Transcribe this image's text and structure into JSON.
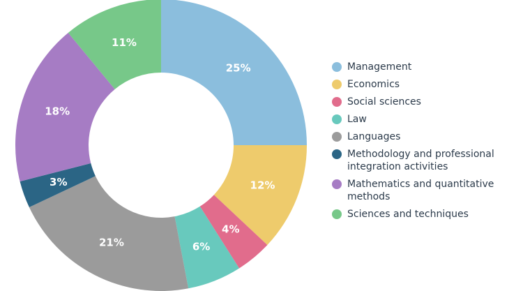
{
  "chart_data": {
    "type": "pie",
    "categories": [
      "Management",
      "Economics",
      "Social sciences",
      "Law",
      "Languages",
      "Methodology and professional integration activities",
      "Mathematics and quantitative methods",
      "Sciences and techniques"
    ],
    "values": [
      25,
      12,
      4,
      6,
      21,
      3,
      18,
      11
    ],
    "labels": [
      "25%",
      "12%",
      "4%",
      "6%",
      "21%",
      "3%",
      "18%",
      "11%"
    ],
    "colors": [
      "#8bbedd",
      "#eecb6c",
      "#e16c8c",
      "#68c9bd",
      "#9b9b9b",
      "#2b6585",
      "#a67cc4",
      "#77c889"
    ],
    "legend": {
      "placement": "right",
      "entries": [
        {
          "line1": "Management",
          "line2": ""
        },
        {
          "line1": "Economics",
          "line2": ""
        },
        {
          "line1": "Social sciences",
          "line2": ""
        },
        {
          "line1": "Law",
          "line2": ""
        },
        {
          "line1": "Languages",
          "line2": ""
        },
        {
          "line1": "Methodology and professional",
          "line2": "integration activities"
        },
        {
          "line1": "Mathematics and quantitative",
          "line2": "methods"
        },
        {
          "line1": "Sciences and techniques",
          "line2": ""
        }
      ]
    }
  }
}
